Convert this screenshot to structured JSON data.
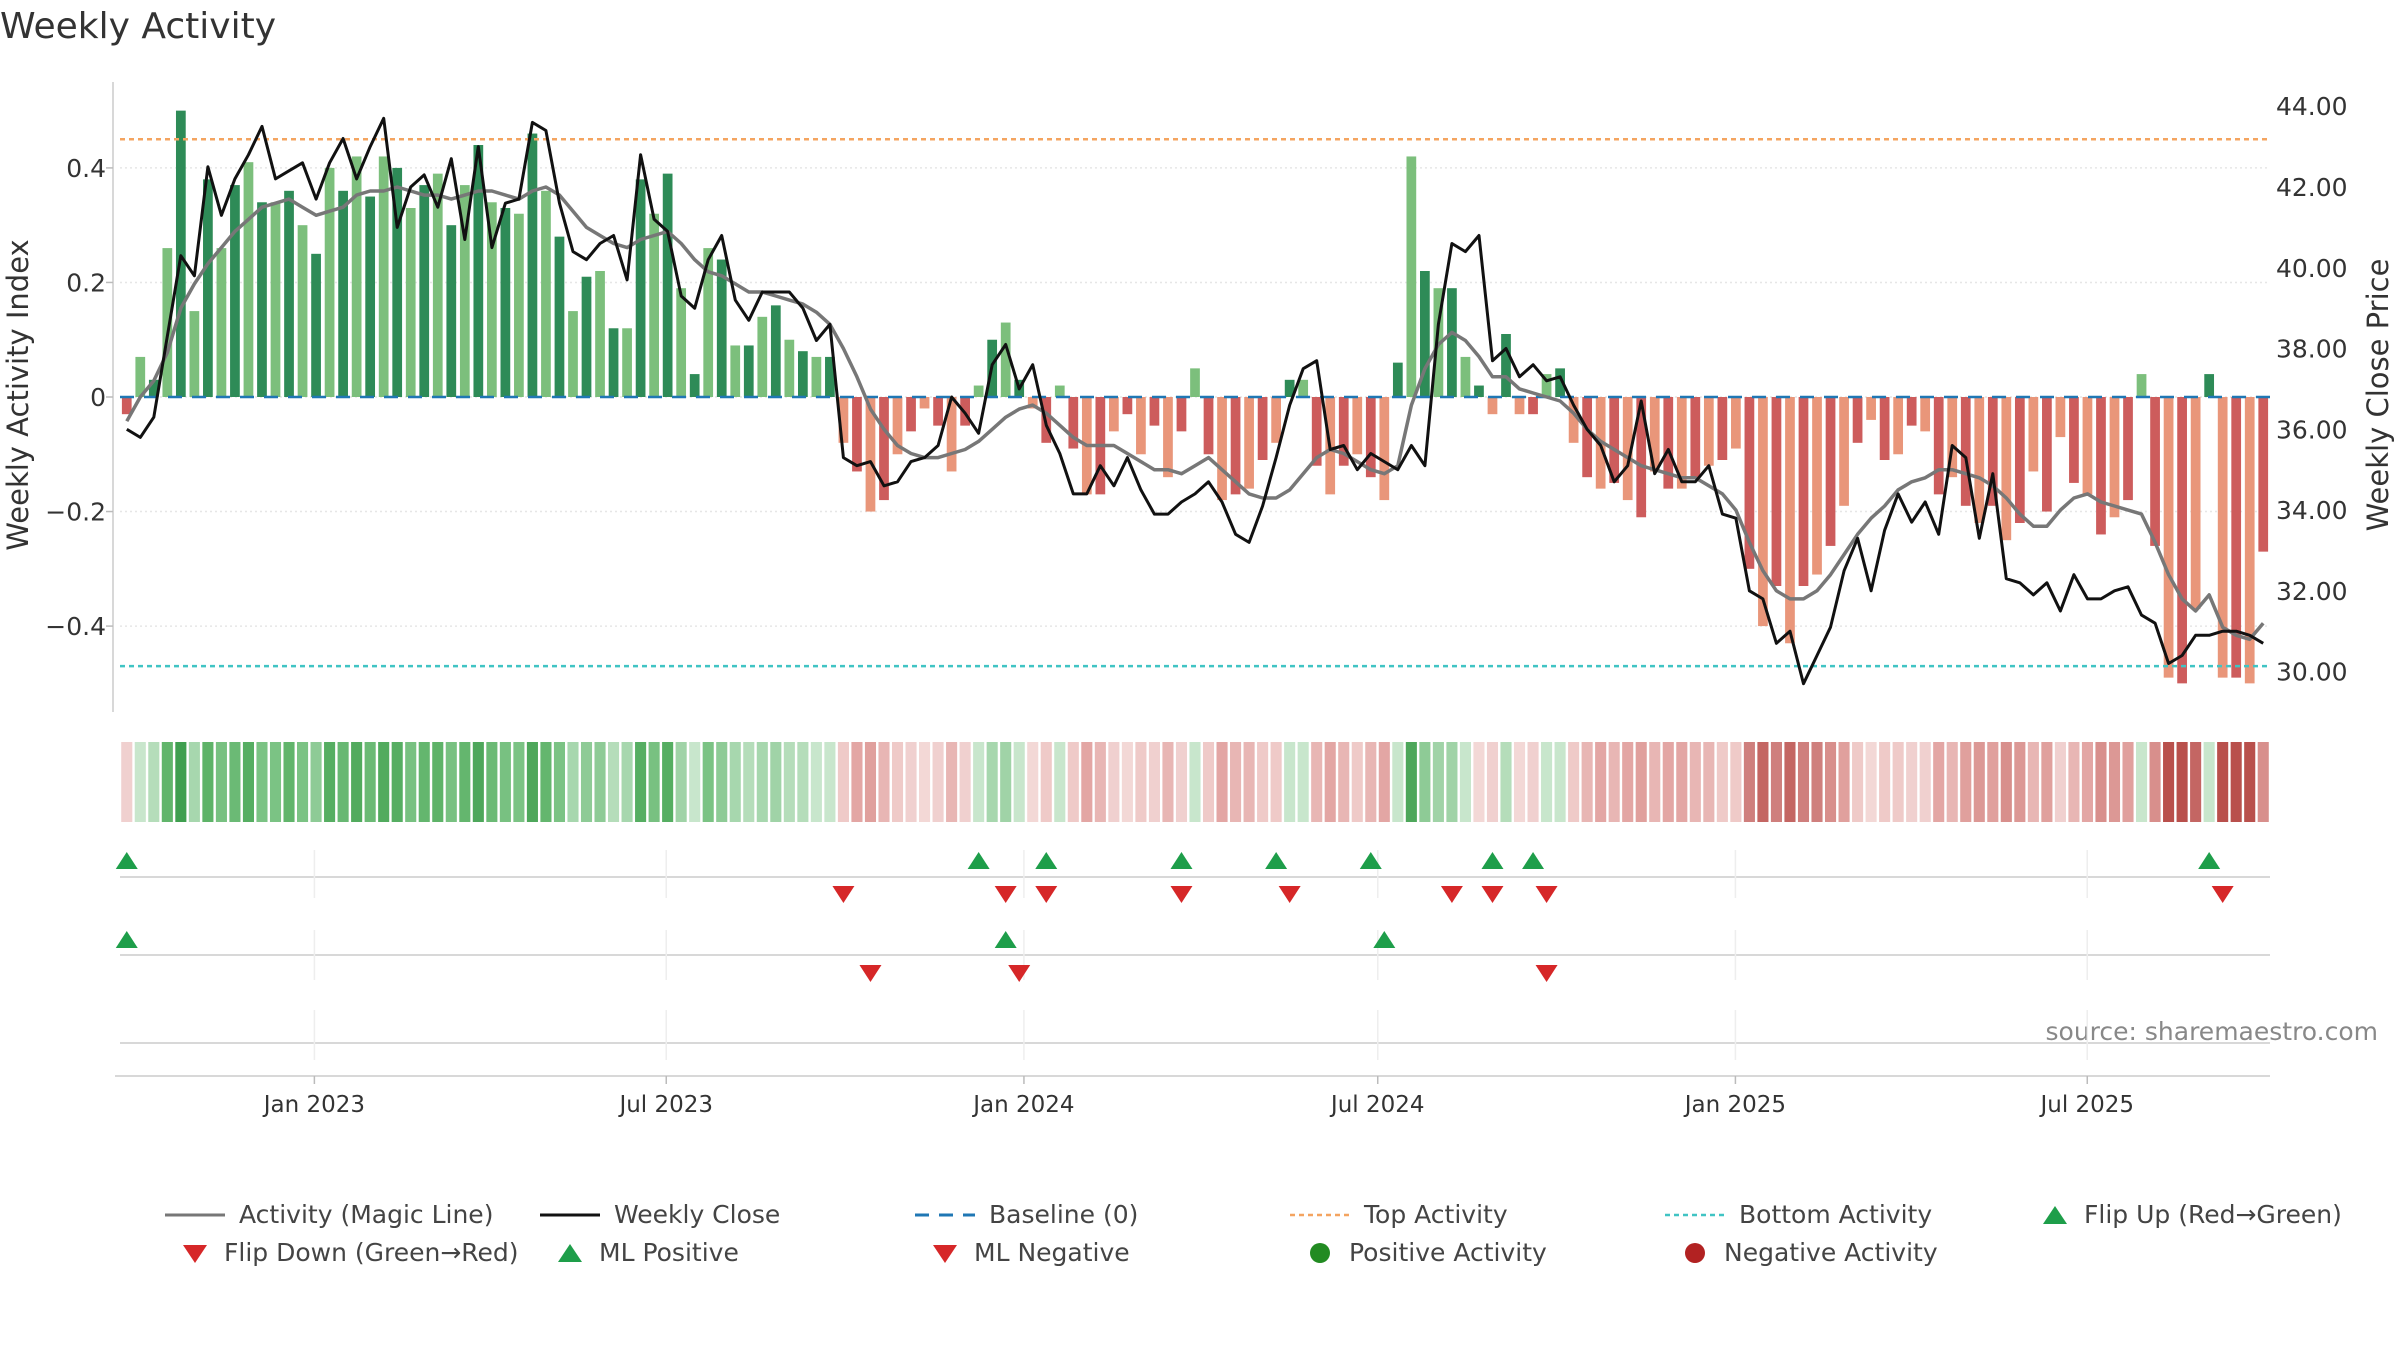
{
  "chart_data": {
    "type": "bar",
    "title": "Weekly Activity",
    "ylabel": "Weekly Activity Index",
    "y2label": "Weekly Close Price",
    "source": "source: sharemaestro.com",
    "ylim": [
      -0.55,
      0.55
    ],
    "y2lim": [
      29.0,
      44.6
    ],
    "yticks": [
      -0.4,
      -0.2,
      0,
      0.2,
      0.4
    ],
    "ytick_labels": [
      "−0.4",
      "−0.2",
      "0",
      "0.2",
      "0.4"
    ],
    "y2ticks": [
      30,
      32,
      34,
      36,
      38,
      40,
      42,
      44
    ],
    "y2tick_labels": [
      "30.00",
      "32.00",
      "34.00",
      "36.00",
      "38.00",
      "40.00",
      "42.00",
      "44.00"
    ],
    "top_activity": 0.45,
    "bottom_activity": -0.47,
    "x_start": "2022-09-23",
    "x_end": "2025-10-03",
    "xticks": [
      {
        "date": "2023-01-01",
        "label": "Jan 2023"
      },
      {
        "date": "2023-07-01",
        "label": "Jul 2023"
      },
      {
        "date": "2024-01-01",
        "label": "Jan 2024"
      },
      {
        "date": "2024-07-01",
        "label": "Jul 2024"
      },
      {
        "date": "2025-01-01",
        "label": "Jan 2025"
      },
      {
        "date": "2025-07-01",
        "label": "Jul 2025"
      }
    ],
    "activity": [
      -0.03,
      0.07,
      0.03,
      0.26,
      0.5,
      0.15,
      0.38,
      0.26,
      0.37,
      0.41,
      0.34,
      0.34,
      0.36,
      0.3,
      0.25,
      0.4,
      0.36,
      0.42,
      0.35,
      0.42,
      0.4,
      0.33,
      0.37,
      0.39,
      0.3,
      0.37,
      0.44,
      0.34,
      0.33,
      0.32,
      0.46,
      0.36,
      0.28,
      0.15,
      0.21,
      0.22,
      0.12,
      0.12,
      0.38,
      0.32,
      0.39,
      0.19,
      0.04,
      0.26,
      0.24,
      0.09,
      0.09,
      0.14,
      0.16,
      0.1,
      0.08,
      0.07,
      0.07,
      -0.08,
      -0.13,
      -0.2,
      -0.18,
      -0.1,
      -0.06,
      -0.02,
      -0.05,
      -0.13,
      -0.05,
      0.02,
      0.1,
      0.13,
      0.03,
      -0.02,
      -0.08,
      0.02,
      -0.09,
      -0.17,
      -0.17,
      -0.06,
      -0.03,
      -0.1,
      -0.05,
      -0.14,
      -0.06,
      0.05,
      -0.1,
      -0.18,
      -0.17,
      -0.16,
      -0.11,
      -0.08,
      0.03,
      0.03,
      -0.12,
      -0.17,
      -0.12,
      -0.1,
      -0.14,
      -0.18,
      0.06,
      0.42,
      0.22,
      0.19,
      0.19,
      0.07,
      0.02,
      -0.03,
      0.11,
      -0.03,
      -0.03,
      0.04,
      0.05,
      -0.08,
      -0.14,
      -0.16,
      -0.15,
      -0.18,
      -0.21,
      -0.13,
      -0.16,
      -0.16,
      -0.14,
      -0.12,
      -0.11,
      -0.09,
      -0.3,
      -0.4,
      -0.33,
      -0.43,
      -0.33,
      -0.31,
      -0.26,
      -0.19,
      -0.08,
      -0.04,
      -0.11,
      -0.1,
      -0.05,
      -0.06,
      -0.17,
      -0.14,
      -0.19,
      -0.22,
      -0.19,
      -0.25,
      -0.22,
      -0.13,
      -0.2,
      -0.07,
      -0.15,
      -0.17,
      -0.24,
      -0.21,
      -0.18,
      0.04,
      -0.26,
      -0.49,
      -0.5,
      -0.37,
      0.04,
      -0.49,
      -0.49,
      -0.5,
      -0.27
    ],
    "magic_line": [
      36.2,
      36.8,
      37.2,
      37.9,
      39.0,
      39.6,
      40.1,
      40.5,
      40.9,
      41.2,
      41.5,
      41.6,
      41.7,
      41.5,
      41.3,
      41.4,
      41.5,
      41.8,
      41.9,
      41.9,
      42.0,
      41.9,
      41.8,
      41.8,
      41.7,
      41.8,
      41.9,
      41.9,
      41.8,
      41.7,
      41.9,
      42.0,
      41.8,
      41.4,
      41.0,
      40.8,
      40.6,
      40.5,
      40.7,
      40.8,
      40.9,
      40.6,
      40.2,
      39.9,
      39.8,
      39.6,
      39.4,
      39.4,
      39.3,
      39.2,
      39.1,
      38.9,
      38.6,
      38.0,
      37.3,
      36.5,
      36.0,
      35.6,
      35.4,
      35.3,
      35.3,
      35.4,
      35.5,
      35.7,
      36.0,
      36.3,
      36.5,
      36.6,
      36.4,
      36.1,
      35.8,
      35.6,
      35.6,
      35.6,
      35.4,
      35.2,
      35.0,
      35.0,
      34.9,
      35.1,
      35.3,
      35.0,
      34.7,
      34.4,
      34.3,
      34.3,
      34.5,
      34.9,
      35.3,
      35.5,
      35.4,
      35.2,
      35.0,
      34.9,
      35.1,
      36.6,
      37.5,
      38.1,
      38.4,
      38.2,
      37.8,
      37.3,
      37.3,
      37.0,
      36.9,
      36.8,
      36.7,
      36.4,
      36.0,
      35.7,
      35.5,
      35.3,
      35.1,
      35.0,
      34.9,
      34.8,
      34.8,
      34.6,
      34.4,
      34.0,
      33.2,
      32.5,
      32.0,
      31.8,
      31.8,
      32.0,
      32.4,
      32.9,
      33.4,
      33.8,
      34.1,
      34.5,
      34.7,
      34.8,
      35.0,
      35.0,
      34.9,
      34.8,
      34.6,
      34.3,
      33.9,
      33.6,
      33.6,
      34.0,
      34.3,
      34.4,
      34.2,
      34.1,
      34.0,
      33.9,
      33.2,
      32.4,
      31.8,
      31.5,
      31.9,
      31.1,
      30.9,
      30.8,
      31.2
    ],
    "weekly_close": [
      36.0,
      35.8,
      36.3,
      38.3,
      40.3,
      39.8,
      42.5,
      41.3,
      42.2,
      42.8,
      43.5,
      42.2,
      42.4,
      42.6,
      41.7,
      42.6,
      43.2,
      42.2,
      43.0,
      43.7,
      41.0,
      42.0,
      42.3,
      41.5,
      42.7,
      40.7,
      43.0,
      40.5,
      41.6,
      41.7,
      43.6,
      43.4,
      41.6,
      40.4,
      40.2,
      40.6,
      40.8,
      39.7,
      42.8,
      41.2,
      40.9,
      39.3,
      39.0,
      40.2,
      40.8,
      39.2,
      38.7,
      39.4,
      39.4,
      39.4,
      39.0,
      38.2,
      38.6,
      35.3,
      35.1,
      35.2,
      34.6,
      34.7,
      35.2,
      35.3,
      35.6,
      36.8,
      36.4,
      35.9,
      37.6,
      38.1,
      37.0,
      37.6,
      36.1,
      35.4,
      34.4,
      34.4,
      35.1,
      34.6,
      35.3,
      34.5,
      33.9,
      33.9,
      34.2,
      34.4,
      34.7,
      34.2,
      33.4,
      33.2,
      34.1,
      35.3,
      36.6,
      37.5,
      37.7,
      35.5,
      35.6,
      35.0,
      35.4,
      35.2,
      35.0,
      35.6,
      35.1,
      38.6,
      40.6,
      40.4,
      40.8,
      37.7,
      38.0,
      37.3,
      37.6,
      37.2,
      37.3,
      36.6,
      36.0,
      35.6,
      34.7,
      35.1,
      36.7,
      34.9,
      35.5,
      34.7,
      34.7,
      35.1,
      33.9,
      33.8,
      32.0,
      31.8,
      30.7,
      31.0,
      29.7,
      30.4,
      31.1,
      32.5,
      33.3,
      32.0,
      33.5,
      34.4,
      33.7,
      34.2,
      33.4,
      35.6,
      35.3,
      33.3,
      34.9,
      32.3,
      32.2,
      31.9,
      32.2,
      31.5,
      32.4,
      31.8,
      31.8,
      32.0,
      32.1,
      31.4,
      31.2,
      30.2,
      30.4,
      30.9,
      30.9,
      31.0,
      31.0,
      30.9,
      30.7
    ],
    "strip_colors": [
      "#f0d0cf",
      "#c8e6cc",
      "#b5ddba",
      "#61b56b",
      "#3f9f4f",
      "#a7d7ae",
      "#5eb368",
      "#78c181",
      "#6bba75",
      "#56ae62",
      "#7bc384",
      "#7bc384",
      "#61b56b",
      "#7bc384",
      "#8ecb96",
      "#56ae62",
      "#68b873",
      "#52ab5e",
      "#6bba75",
      "#52ab5e",
      "#56ae62",
      "#78c181",
      "#64b66e",
      "#5eb368",
      "#78c181",
      "#64b66e",
      "#4ea75b",
      "#6bba75",
      "#78c181",
      "#7bc384",
      "#4ea75b",
      "#64b66e",
      "#7bc384",
      "#a7d7ae",
      "#8ecb96",
      "#8ecb96",
      "#b5ddba",
      "#a7d7ae",
      "#56ae62",
      "#78c181",
      "#56ae62",
      "#a0d3a7",
      "#c8e6cc",
      "#7bc384",
      "#8ecb96",
      "#a7d7ae",
      "#b5ddba",
      "#a7d7ae",
      "#a0d3a7",
      "#b5ddba",
      "#b5ddba",
      "#c8e6cc",
      "#c8e6cc",
      "#efcac8",
      "#e3a6a4",
      "#e0a09d",
      "#e8b6b4",
      "#efcac8",
      "#f0d0cf",
      "#f3d8d6",
      "#f0d0cf",
      "#e8b6b4",
      "#f0d0cf",
      "#c8e6cc",
      "#a7d7ae",
      "#a0d3a7",
      "#c8e6cc",
      "#f3d8d6",
      "#efcac8",
      "#c8e6cc",
      "#efcac8",
      "#e3a6a4",
      "#e8b6b4",
      "#f0d0cf",
      "#f3d8d6",
      "#efcac8",
      "#f0d0cf",
      "#e8b6b4",
      "#f0d0cf",
      "#c8e6cc",
      "#efcac8",
      "#e3a6a4",
      "#e8b6b4",
      "#e8b6b4",
      "#efcac8",
      "#efcac8",
      "#c8e6cc",
      "#c8e6cc",
      "#e8b6b4",
      "#e3a6a4",
      "#e8b6b4",
      "#efcac8",
      "#e8b6b4",
      "#e3a6a4",
      "#c8e6cc",
      "#4ea75b",
      "#8ecb96",
      "#a0d3a7",
      "#a0d3a7",
      "#c8e6cc",
      "#f3d8d6",
      "#f0d0cf",
      "#b5ddba",
      "#f3d8d6",
      "#f0d0cf",
      "#c8e6cc",
      "#c8e6cc",
      "#efcac8",
      "#e8b6b4",
      "#e3a6a4",
      "#e8b6b4",
      "#e3a6a4",
      "#e0a09d",
      "#e8b6b4",
      "#e3a6a4",
      "#e3a6a4",
      "#e8b6b4",
      "#e8b6b4",
      "#efcac8",
      "#efcac8",
      "#cf7f7d",
      "#c46663",
      "#cf7f7d",
      "#c46663",
      "#cf7f7d",
      "#cf7f7d",
      "#d88f8c",
      "#e0a09d",
      "#efcac8",
      "#f3d8d6",
      "#efcac8",
      "#efcac8",
      "#f0d0cf",
      "#f0d0cf",
      "#e3a6a4",
      "#e8b6b4",
      "#e0a09d",
      "#dc9895",
      "#e0a09d",
      "#d88f8c",
      "#dc9895",
      "#e8b6b4",
      "#e0a09d",
      "#f0d0cf",
      "#e8b6b4",
      "#e3a6a4",
      "#d88f8c",
      "#dc9895",
      "#e0a09d",
      "#c8e6cc",
      "#d88f8c",
      "#b9504c",
      "#b9504c",
      "#c46663",
      "#c8e6cc",
      "#b9504c",
      "#b9504c",
      "#b9504c",
      "#d88f8c"
    ],
    "flip_up": [
      0,
      63,
      68,
      78,
      85,
      92,
      101,
      104,
      154
    ],
    "flip_down": [
      53,
      65,
      68,
      78,
      86,
      98,
      101,
      105,
      155
    ],
    "ml_positive": [
      0,
      65,
      93
    ],
    "ml_negative": [
      55,
      66,
      105
    ],
    "legend": [
      "Activity (Magic Line)",
      "Weekly Close",
      "Baseline (0)",
      "Top Activity",
      "Bottom Activity",
      "Flip Up (Red→Green)",
      "Flip Down (Green→Red)",
      "ML Positive",
      "ML Negative",
      "Positive Activity",
      "Negative Activity"
    ],
    "colors": {
      "pos_dark": "#2e8b57",
      "pos_light": "#7cbf7c",
      "neg_dark": "#cd5c5c",
      "neg_light": "#e9967a",
      "magic_line": "#777777",
      "close": "#111111",
      "baseline": "#1f77b4",
      "top": "#f4a460",
      "bottom": "#40c4c4",
      "up_marker": "#1e9e4a",
      "down_marker": "#d62728",
      "pos_dot": "#228b22",
      "neg_dot": "#b22222"
    }
  }
}
